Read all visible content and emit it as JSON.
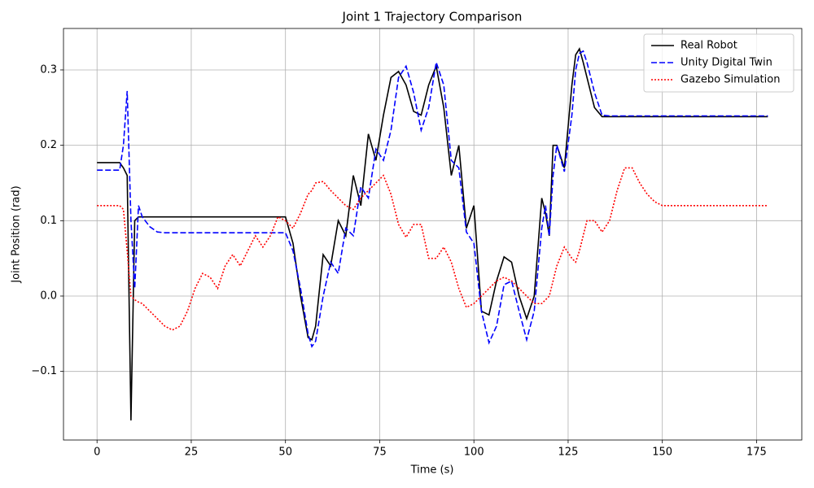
{
  "chart_data": {
    "type": "line",
    "title": "Joint 1 Trajectory Comparison",
    "xlabel": "Time (s)",
    "ylabel": "Joint Position (rad)",
    "x": [
      0,
      2,
      4,
      6,
      7,
      8,
      9,
      10,
      11,
      12,
      14,
      16,
      18,
      20,
      22,
      24,
      26,
      28,
      30,
      32,
      34,
      36,
      38,
      40,
      42,
      44,
      46,
      48,
      50,
      52,
      54,
      56,
      57,
      58,
      60,
      62,
      64,
      66,
      68,
      70,
      72,
      74,
      76,
      78,
      80,
      82,
      84,
      86,
      88,
      90,
      92,
      94,
      96,
      98,
      100,
      102,
      104,
      106,
      108,
      110,
      112,
      114,
      116,
      118,
      119,
      120,
      121,
      122,
      124,
      126,
      127,
      128,
      129,
      130,
      132,
      134,
      136,
      138,
      140,
      142,
      144,
      146,
      148,
      150,
      155,
      160,
      165,
      170,
      178
    ],
    "series": [
      {
        "name": "Real Robot",
        "color": "#000000",
        "style": "solid",
        "values": [
          0.177,
          0.177,
          0.177,
          0.177,
          0.17,
          0.16,
          -0.165,
          0.1,
          0.105,
          0.105,
          0.105,
          0.105,
          0.105,
          0.105,
          0.105,
          0.105,
          0.105,
          0.105,
          0.105,
          0.105,
          0.105,
          0.105,
          0.105,
          0.105,
          0.105,
          0.105,
          0.105,
          0.105,
          0.105,
          0.07,
          0.0,
          -0.055,
          -0.058,
          -0.04,
          0.055,
          0.04,
          0.1,
          0.08,
          0.16,
          0.12,
          0.215,
          0.18,
          0.24,
          0.29,
          0.298,
          0.28,
          0.245,
          0.24,
          0.28,
          0.305,
          0.25,
          0.16,
          0.2,
          0.09,
          0.12,
          -0.02,
          -0.025,
          0.02,
          0.052,
          0.045,
          0.0,
          -0.03,
          0.0,
          0.13,
          0.11,
          0.08,
          0.2,
          0.2,
          0.17,
          0.28,
          0.32,
          0.328,
          0.31,
          0.29,
          0.25,
          0.238,
          0.238,
          0.238,
          0.238,
          0.238,
          0.238,
          0.238,
          0.238,
          0.238,
          0.238,
          0.238,
          0.238,
          0.238,
          0.238
        ]
      },
      {
        "name": "Unity Digital Twin",
        "color": "#0000ff",
        "style": "dashed",
        "values": [
          0.167,
          0.167,
          0.167,
          0.167,
          0.2,
          0.272,
          0.1,
          0.01,
          0.12,
          0.105,
          0.092,
          0.085,
          0.084,
          0.084,
          0.084,
          0.084,
          0.084,
          0.084,
          0.084,
          0.084,
          0.084,
          0.084,
          0.084,
          0.084,
          0.084,
          0.084,
          0.084,
          0.084,
          0.084,
          0.06,
          0.01,
          -0.05,
          -0.067,
          -0.06,
          0.0,
          0.045,
          0.03,
          0.09,
          0.08,
          0.145,
          0.13,
          0.195,
          0.18,
          0.22,
          0.29,
          0.305,
          0.27,
          0.22,
          0.25,
          0.31,
          0.28,
          0.18,
          0.17,
          0.085,
          0.07,
          -0.02,
          -0.062,
          -0.04,
          0.015,
          0.02,
          -0.02,
          -0.058,
          -0.02,
          0.09,
          0.12,
          0.08,
          0.16,
          0.2,
          0.165,
          0.24,
          0.3,
          0.322,
          0.325,
          0.31,
          0.27,
          0.24,
          0.239,
          0.239,
          0.239,
          0.239,
          0.239,
          0.239,
          0.239,
          0.239,
          0.239,
          0.239,
          0.239,
          0.239,
          0.239
        ]
      },
      {
        "name": "Gazebo Simulation",
        "color": "#ff0000",
        "style": "dotted",
        "values": [
          0.12,
          0.12,
          0.12,
          0.12,
          0.115,
          0.06,
          0.0,
          -0.005,
          -0.008,
          -0.01,
          -0.02,
          -0.03,
          -0.04,
          -0.045,
          -0.04,
          -0.02,
          0.01,
          0.03,
          0.025,
          0.01,
          0.04,
          0.055,
          0.04,
          0.06,
          0.08,
          0.065,
          0.08,
          0.105,
          0.1,
          0.09,
          0.11,
          0.135,
          0.14,
          0.15,
          0.152,
          0.14,
          0.13,
          0.12,
          0.115,
          0.13,
          0.14,
          0.15,
          0.16,
          0.135,
          0.095,
          0.078,
          0.095,
          0.095,
          0.05,
          0.05,
          0.065,
          0.045,
          0.01,
          -0.015,
          -0.01,
          0.0,
          0.01,
          0.02,
          0.025,
          0.02,
          0.01,
          0.0,
          -0.01,
          -0.01,
          -0.005,
          0.0,
          0.02,
          0.04,
          0.065,
          0.05,
          0.045,
          0.06,
          0.08,
          0.1,
          0.1,
          0.085,
          0.1,
          0.14,
          0.17,
          0.17,
          0.15,
          0.135,
          0.125,
          0.12,
          0.12,
          0.12,
          0.12,
          0.12,
          0.12
        ]
      }
    ],
    "xlim": [
      -8.9,
      187
    ],
    "ylim": [
      -0.191,
      0.355
    ],
    "xticks": [
      0,
      25,
      50,
      75,
      100,
      125,
      150,
      175
    ],
    "yticks": [
      {
        "value": -0.1,
        "label": "−0.1"
      },
      {
        "value": 0,
        "label": "0.0"
      },
      0.1,
      0.2,
      0.3
    ],
    "grid": true,
    "legend": "upper right"
  }
}
